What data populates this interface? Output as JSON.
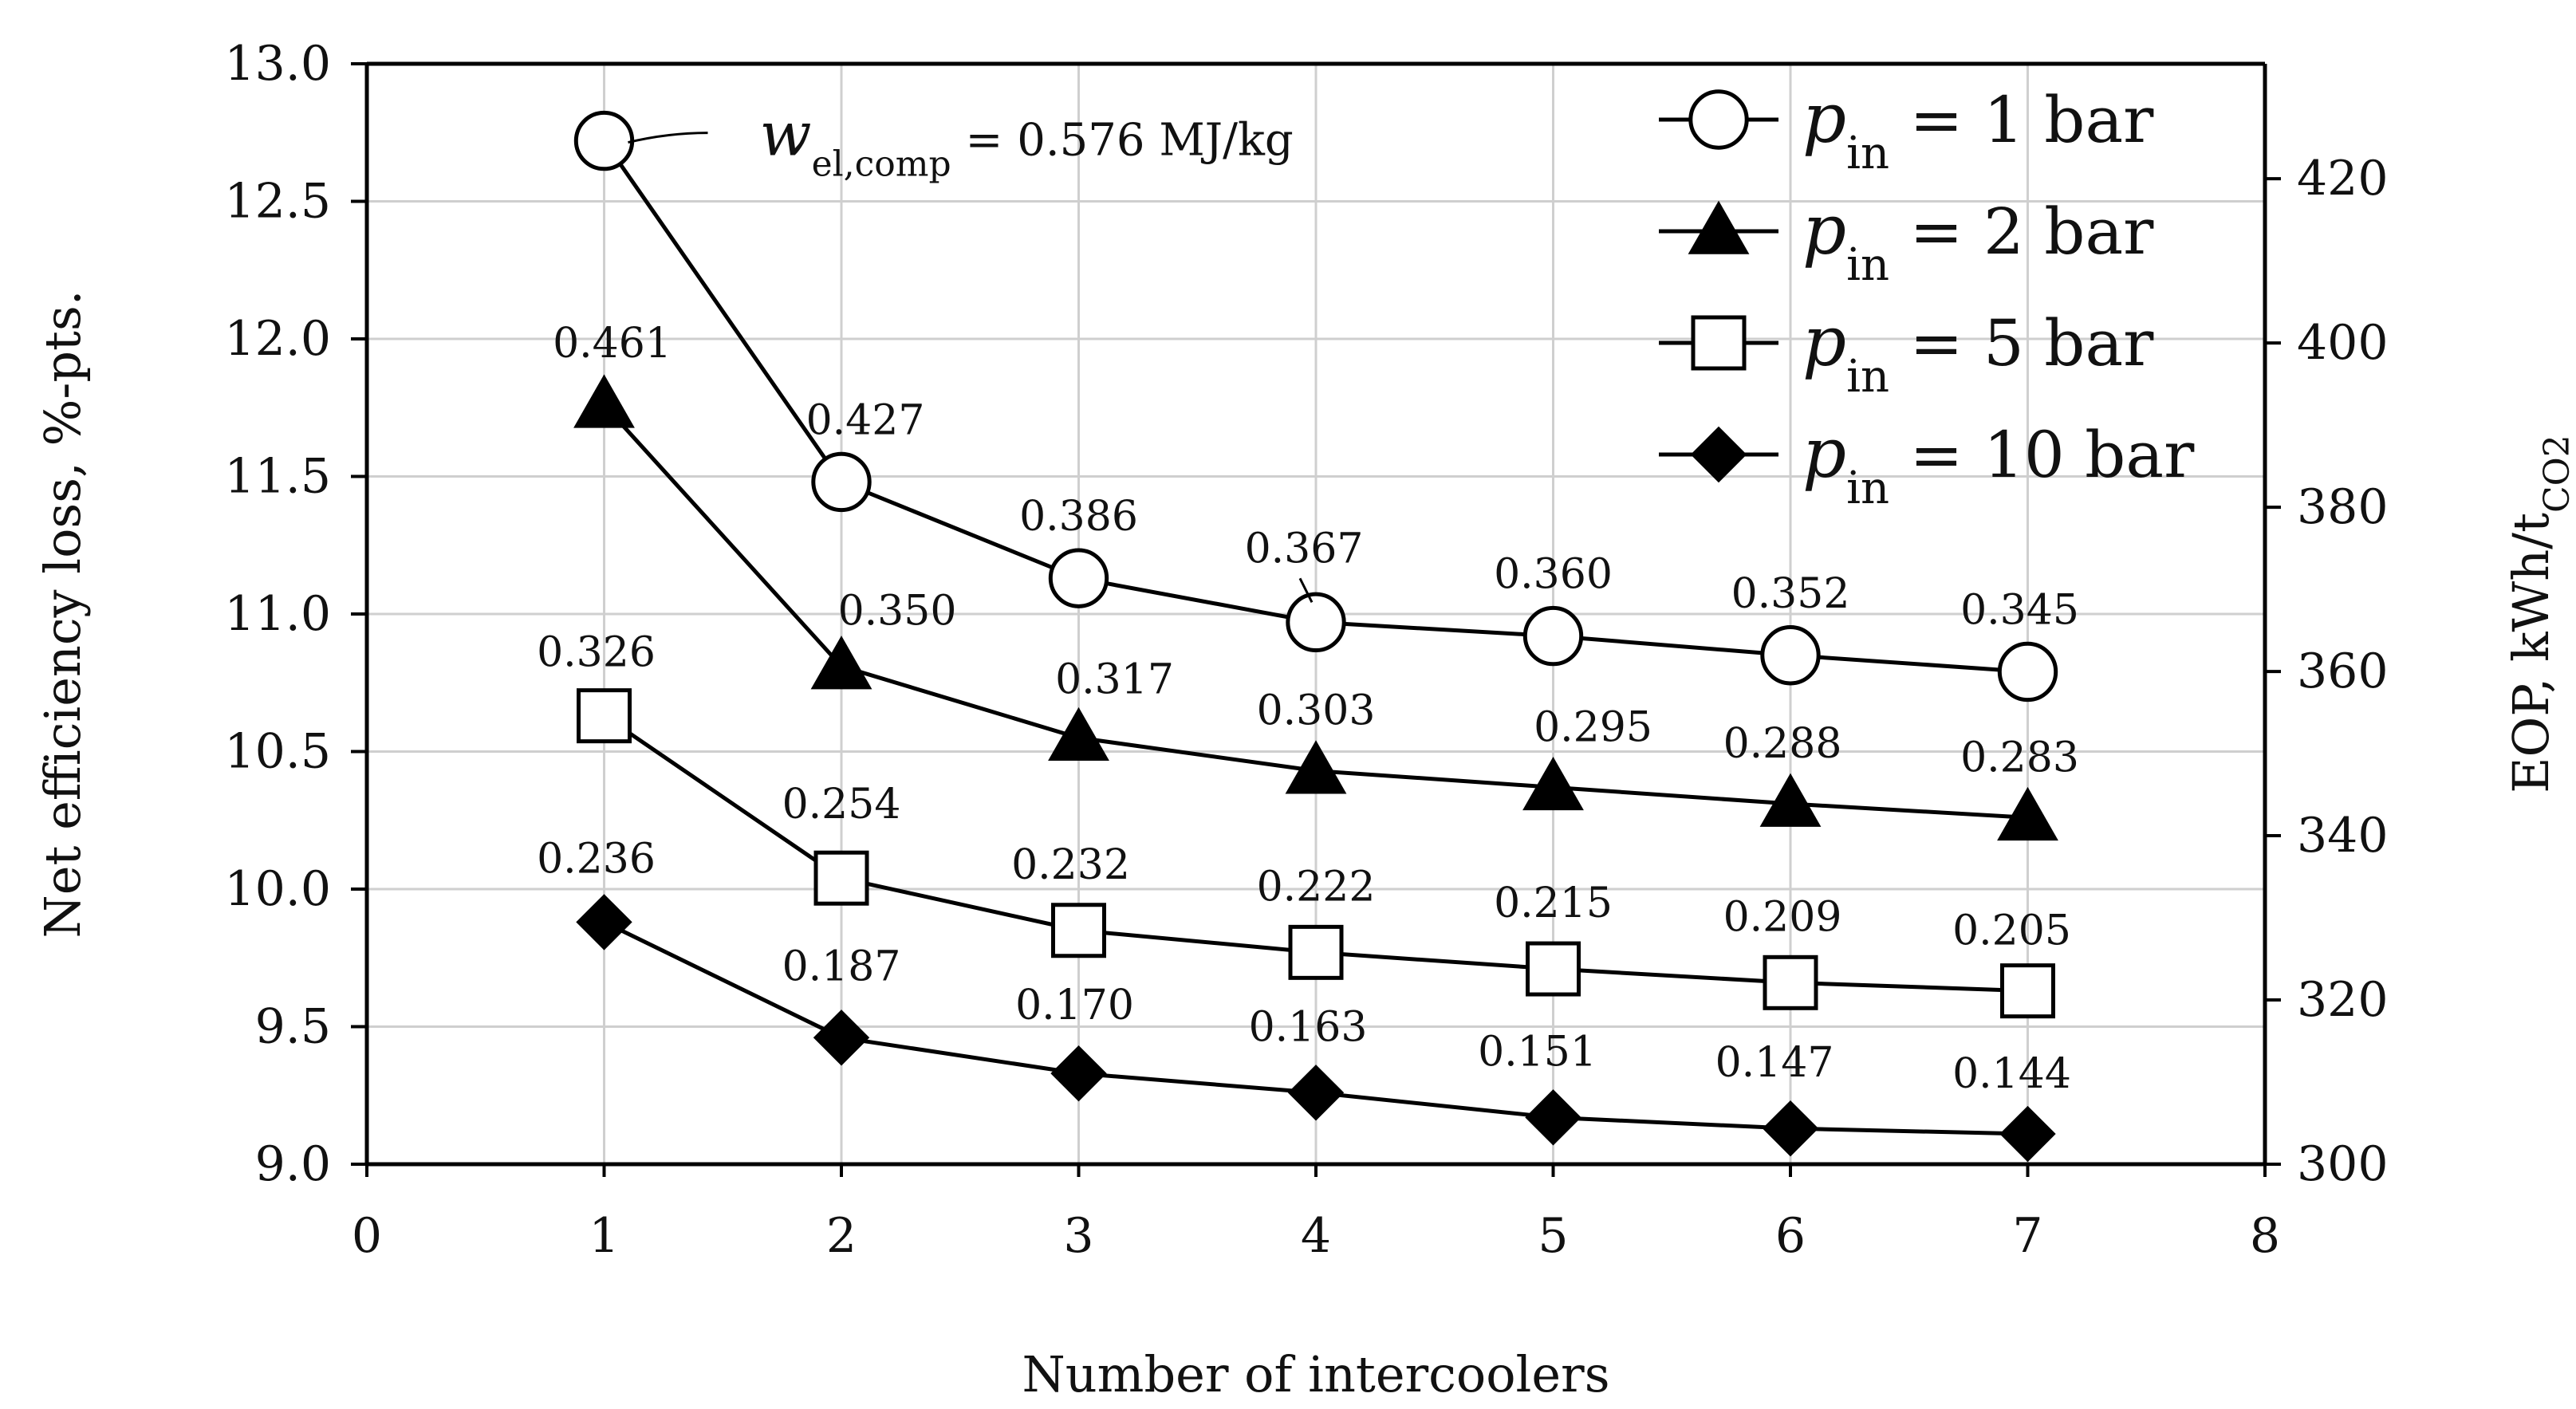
{
  "chart_data": {
    "type": "line",
    "title": "",
    "xlabel": "Number of intercoolers",
    "ylabel": "Net efficiency loss, %-pts.",
    "y2label": "EOP, kWh/t",
    "y2label_sub": "CO2",
    "xlim": [
      0,
      8
    ],
    "ylim": [
      9.0,
      13.0
    ],
    "y2lim": [
      300,
      434
    ],
    "grid": true,
    "legend_position": "top-right",
    "x_ticks": [
      "0",
      "1",
      "2",
      "3",
      "4",
      "5",
      "6",
      "7",
      "8"
    ],
    "y_ticks": [
      "9.0",
      "9.5",
      "10.0",
      "10.5",
      "11.0",
      "11.5",
      "12.0",
      "12.5",
      "13.0"
    ],
    "y2_ticks": [
      "300",
      "320",
      "340",
      "360",
      "380",
      "400",
      "420"
    ],
    "x": [
      1,
      2,
      3,
      4,
      5,
      6,
      7
    ],
    "series": [
      {
        "name": "pin = 1 bar",
        "legend_italic": "p",
        "legend_sub": "in",
        "legend_rest": " = 1 bar",
        "marker": "circle-open",
        "values": [
          12.72,
          11.48,
          11.13,
          10.97,
          10.92,
          10.85,
          10.79
        ],
        "labels": [
          "",
          "0.427",
          "0.386",
          "0.367",
          "0.360",
          "0.352",
          "0.345"
        ]
      },
      {
        "name": "pin = 2 bar",
        "legend_italic": "p",
        "legend_sub": "in",
        "legend_rest": " = 2 bar",
        "marker": "triangle-filled",
        "values": [
          11.76,
          10.81,
          10.55,
          10.43,
          10.37,
          10.31,
          10.26
        ],
        "labels": [
          "0.461",
          "0.350",
          "0.317",
          "0.303",
          "0.295",
          "0.288",
          "0.283"
        ]
      },
      {
        "name": "pin = 5 bar",
        "legend_italic": "p",
        "legend_sub": "in",
        "legend_rest": " = 5 bar",
        "marker": "square-open",
        "values": [
          10.63,
          10.04,
          9.85,
          9.77,
          9.71,
          9.66,
          9.63
        ],
        "labels": [
          "0.326",
          "0.254",
          "0.232",
          "0.222",
          "0.215",
          "0.209",
          "0.205"
        ]
      },
      {
        "name": "pin = 10 bar",
        "legend_italic": "p",
        "legend_sub": "in",
        "legend_rest": " = 10 bar",
        "marker": "diamond-filled",
        "values": [
          9.88,
          9.46,
          9.33,
          9.26,
          9.17,
          9.13,
          9.11
        ],
        "labels": [
          "0.236",
          "0.187",
          "0.170",
          "0.163",
          "0.151",
          "0.147",
          "0.144"
        ]
      }
    ],
    "annotation": {
      "symbol": "w",
      "subscript": "el,comp",
      "text": " = 0.576 MJ/kg"
    }
  }
}
